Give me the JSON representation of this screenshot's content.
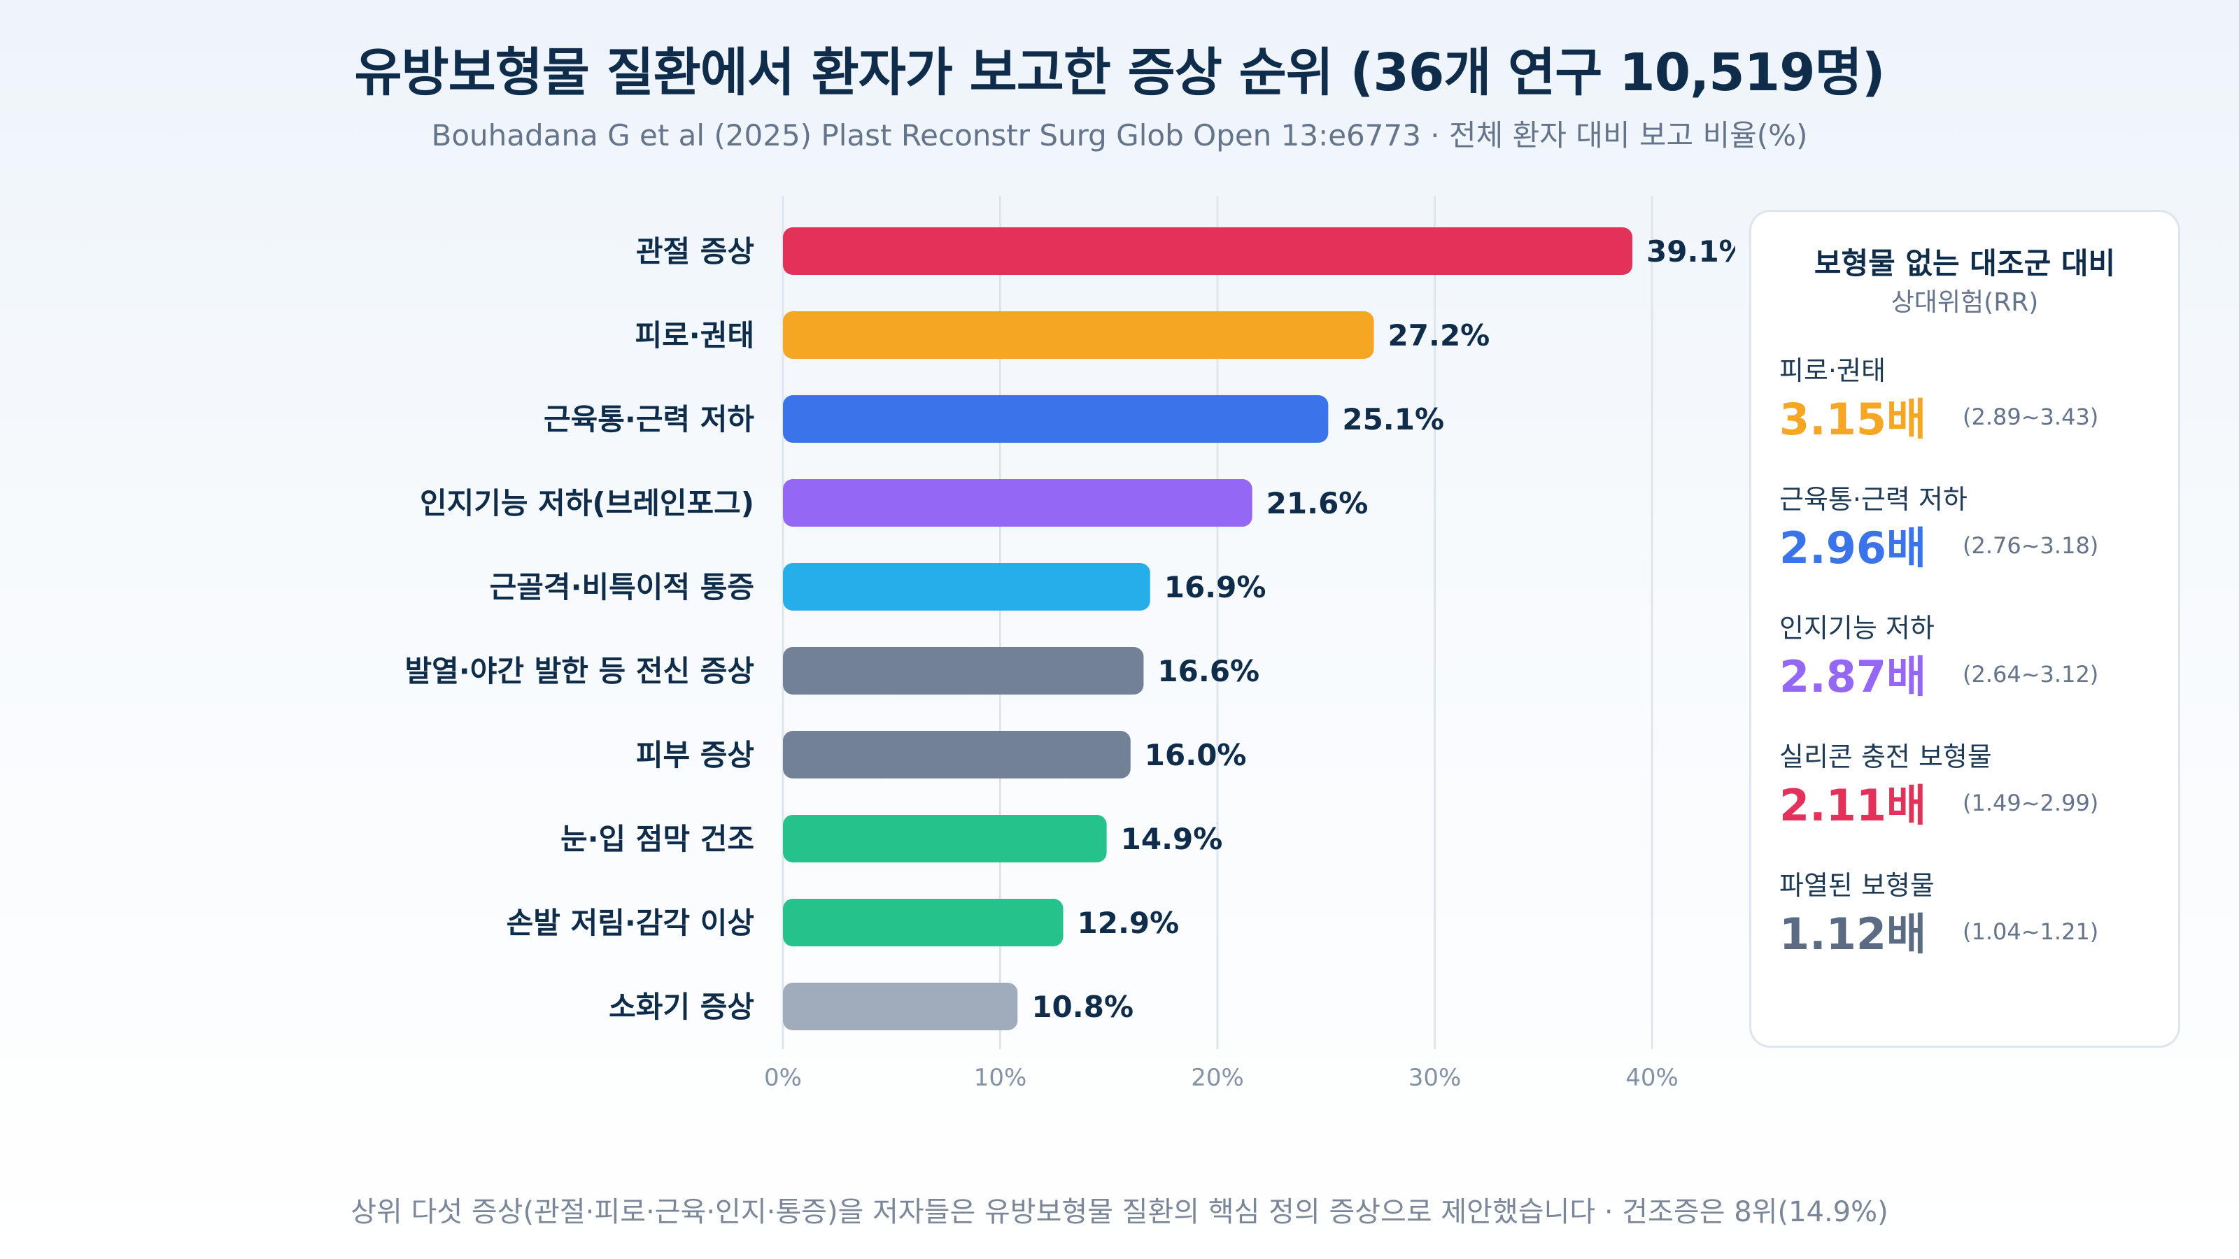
{
  "header": {
    "title": "유방보형물 질환에서 환자가 보고한 증상 순위 (36개 연구 10,519명)",
    "subtitle": "Bouhadana G et al (2025) Plast Reconstr Surg Glob Open 13:e6773 · 전체 환자 대비 보고 비율(%)"
  },
  "chart_data": {
    "type": "bar",
    "orientation": "horizontal",
    "categories": [
      "관절 증상",
      "피로·권태",
      "근육통·근력 저하",
      "인지기능 저하(브레인포그)",
      "근골격·비특이적 통증",
      "발열·야간 발한 등 전신 증상",
      "피부 증상",
      "눈·입 점막 건조",
      "손발 저림·감각 이상",
      "소화기 증상"
    ],
    "values": [
      39.1,
      27.2,
      25.1,
      21.6,
      16.9,
      16.6,
      16.0,
      14.9,
      12.9,
      10.8
    ],
    "value_labels": [
      "39.1%",
      "27.2%",
      "25.1%",
      "21.6%",
      "16.9%",
      "16.6%",
      "16.0%",
      "14.9%",
      "12.9%",
      "10.8%"
    ],
    "colors": [
      "#e3325a",
      "#f5a623",
      "#3b73ea",
      "#9467f4",
      "#25aeea",
      "#738197",
      "#738197",
      "#26c28b",
      "#26c28b",
      "#a0abbc"
    ],
    "xlim": [
      0,
      40
    ],
    "xticks": [
      0,
      10,
      20,
      30,
      40
    ],
    "xtick_labels": [
      "0%",
      "10%",
      "20%",
      "30%",
      "40%"
    ],
    "grid": true
  },
  "panel": {
    "title": "보형물 없는 대조군 대비",
    "subtitle": "상대위험(RR)",
    "items": [
      {
        "label": "피로·권태",
        "value": "3.15배",
        "ci": "(2.89~3.43)",
        "color": "#f5a623"
      },
      {
        "label": "근육통·근력 저하",
        "value": "2.96배",
        "ci": "(2.76~3.18)",
        "color": "#3b73ea"
      },
      {
        "label": "인지기능 저하",
        "value": "2.87배",
        "ci": "(2.64~3.12)",
        "color": "#9467f4"
      },
      {
        "label": "실리콘 충전 보형물",
        "value": "2.11배",
        "ci": "(1.49~2.99)",
        "color": "#e3325a"
      },
      {
        "label": "파열된 보형물",
        "value": "1.12배",
        "ci": "(1.04~1.21)",
        "color": "#5b6b84"
      }
    ]
  },
  "footnote": "상위 다섯 증상(관절·피로·근육·인지·통증)을 저자들은 유방보형물 질환의 핵심 정의 증상으로 제안했습니다 · 건조증은 8위(14.9%)"
}
